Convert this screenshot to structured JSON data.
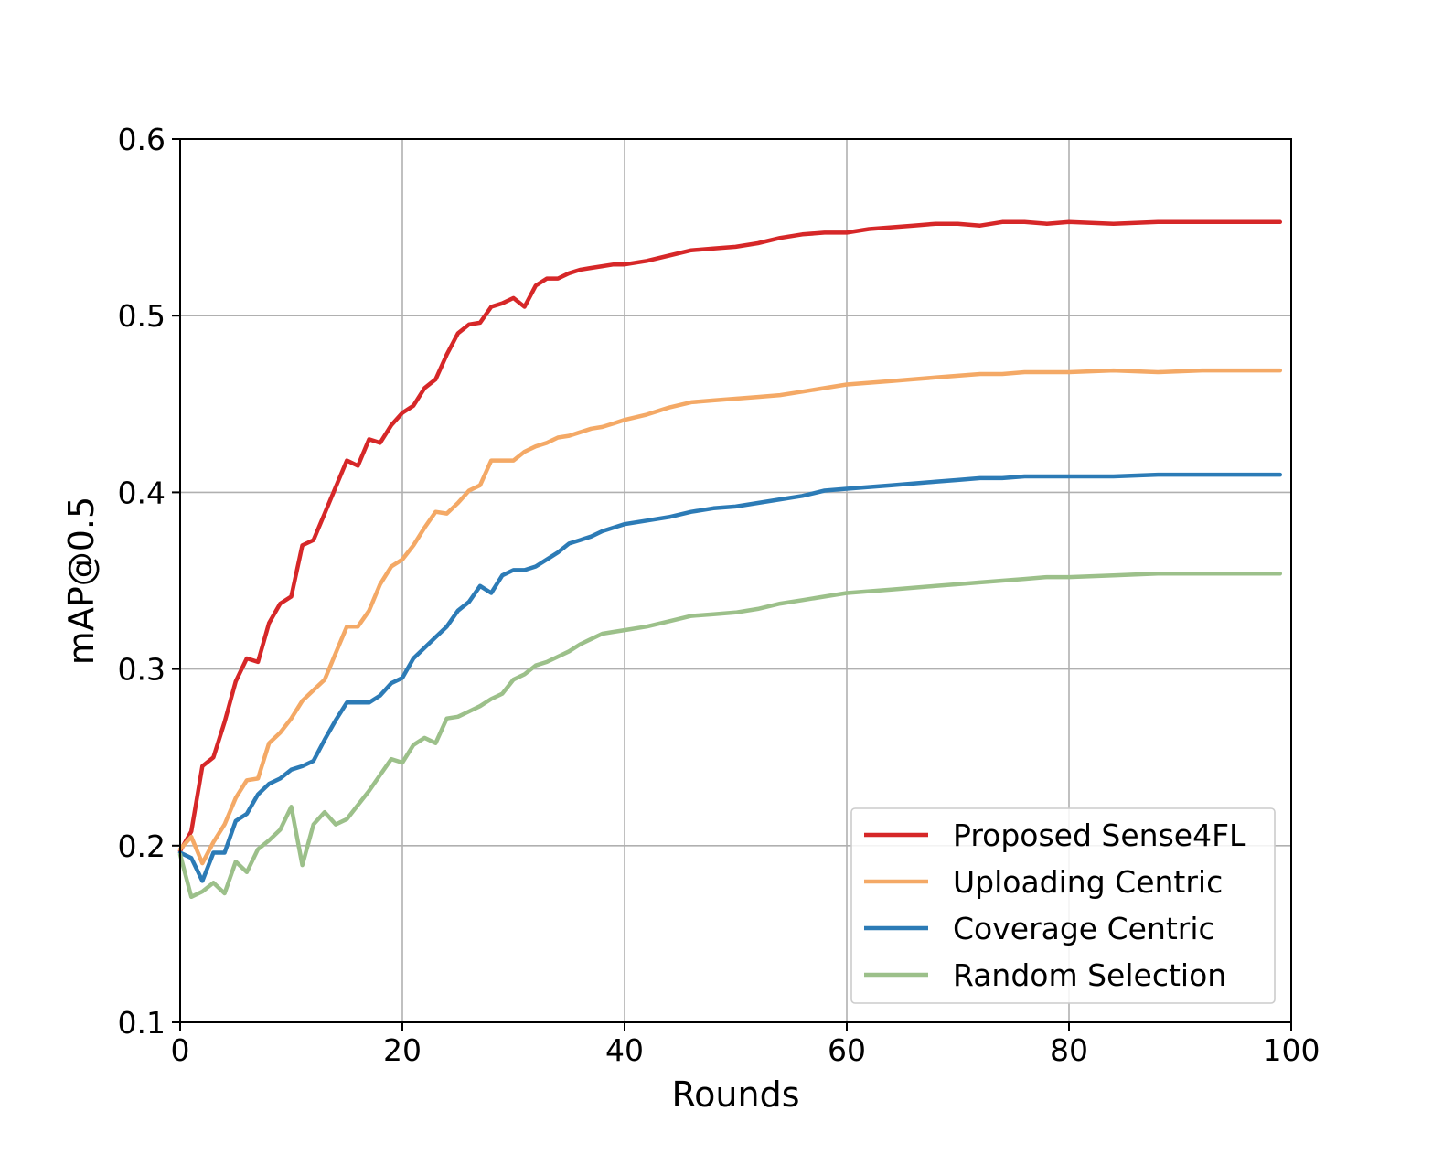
{
  "chart_data": {
    "type": "line",
    "xlabel": "Rounds",
    "ylabel": "mAP@0.5",
    "xlim": [
      0,
      100
    ],
    "ylim": [
      0.1,
      0.6
    ],
    "xticks": [
      0,
      20,
      40,
      60,
      80,
      100
    ],
    "yticks": [
      0.1,
      0.2,
      0.3,
      0.4,
      0.5,
      0.6
    ],
    "xtick_labels": [
      "0",
      "20",
      "40",
      "60",
      "80",
      "100"
    ],
    "ytick_labels": [
      "0.1",
      "0.2",
      "0.3",
      "0.4",
      "0.5",
      "0.6"
    ],
    "grid": true,
    "legend_position": "lower-right",
    "series": [
      {
        "name": "Proposed Sense4FL",
        "color": "#d62728",
        "x": [
          0,
          1,
          2,
          3,
          4,
          5,
          6,
          7,
          8,
          9,
          10,
          11,
          12,
          13,
          14,
          15,
          16,
          17,
          18,
          19,
          20,
          21,
          22,
          23,
          24,
          25,
          26,
          27,
          28,
          29,
          30,
          31,
          32,
          33,
          34,
          35,
          36,
          37,
          38,
          39,
          40,
          42,
          44,
          46,
          48,
          50,
          52,
          54,
          56,
          58,
          60,
          62,
          64,
          66,
          68,
          70,
          72,
          74,
          76,
          78,
          80,
          84,
          88,
          92,
          96,
          99
        ],
        "values": [
          0.197,
          0.208,
          0.245,
          0.25,
          0.27,
          0.293,
          0.306,
          0.304,
          0.326,
          0.337,
          0.341,
          0.37,
          0.373,
          0.388,
          0.403,
          0.418,
          0.415,
          0.43,
          0.428,
          0.438,
          0.445,
          0.449,
          0.459,
          0.464,
          0.478,
          0.49,
          0.495,
          0.496,
          0.505,
          0.507,
          0.51,
          0.505,
          0.517,
          0.521,
          0.521,
          0.524,
          0.526,
          0.527,
          0.528,
          0.529,
          0.529,
          0.531,
          0.534,
          0.537,
          0.538,
          0.539,
          0.541,
          0.544,
          0.546,
          0.547,
          0.547,
          0.549,
          0.55,
          0.551,
          0.552,
          0.552,
          0.551,
          0.553,
          0.553,
          0.552,
          0.553,
          0.552,
          0.553,
          0.553,
          0.553,
          0.553
        ]
      },
      {
        "name": "Uploading Centric",
        "color": "#f4a966",
        "x": [
          0,
          1,
          2,
          3,
          4,
          5,
          6,
          7,
          8,
          9,
          10,
          11,
          12,
          13,
          14,
          15,
          16,
          17,
          18,
          19,
          20,
          21,
          22,
          23,
          24,
          25,
          26,
          27,
          28,
          29,
          30,
          31,
          32,
          33,
          34,
          35,
          36,
          37,
          38,
          39,
          40,
          42,
          44,
          46,
          48,
          50,
          52,
          54,
          56,
          58,
          60,
          62,
          64,
          66,
          68,
          70,
          72,
          74,
          76,
          78,
          80,
          84,
          88,
          92,
          96,
          99
        ],
        "values": [
          0.198,
          0.205,
          0.19,
          0.202,
          0.212,
          0.227,
          0.237,
          0.238,
          0.258,
          0.264,
          0.272,
          0.282,
          0.288,
          0.294,
          0.309,
          0.324,
          0.324,
          0.333,
          0.348,
          0.358,
          0.362,
          0.37,
          0.38,
          0.389,
          0.388,
          0.394,
          0.401,
          0.404,
          0.418,
          0.418,
          0.418,
          0.423,
          0.426,
          0.428,
          0.431,
          0.432,
          0.434,
          0.436,
          0.437,
          0.439,
          0.441,
          0.444,
          0.448,
          0.451,
          0.452,
          0.453,
          0.454,
          0.455,
          0.457,
          0.459,
          0.461,
          0.462,
          0.463,
          0.464,
          0.465,
          0.466,
          0.467,
          0.467,
          0.468,
          0.468,
          0.468,
          0.469,
          0.468,
          0.469,
          0.469,
          0.469
        ]
      },
      {
        "name": "Coverage Centric",
        "color": "#2c7bb6",
        "x": [
          0,
          1,
          2,
          3,
          4,
          5,
          6,
          7,
          8,
          9,
          10,
          11,
          12,
          13,
          14,
          15,
          16,
          17,
          18,
          19,
          20,
          21,
          22,
          23,
          24,
          25,
          26,
          27,
          28,
          29,
          30,
          31,
          32,
          33,
          34,
          35,
          36,
          37,
          38,
          39,
          40,
          42,
          44,
          46,
          48,
          50,
          52,
          54,
          56,
          58,
          60,
          62,
          64,
          66,
          68,
          70,
          72,
          74,
          76,
          78,
          80,
          84,
          88,
          92,
          96,
          99
        ],
        "values": [
          0.196,
          0.193,
          0.18,
          0.196,
          0.196,
          0.214,
          0.218,
          0.229,
          0.235,
          0.238,
          0.243,
          0.245,
          0.248,
          0.26,
          0.271,
          0.281,
          0.281,
          0.281,
          0.285,
          0.292,
          0.295,
          0.306,
          0.312,
          0.318,
          0.324,
          0.333,
          0.338,
          0.347,
          0.343,
          0.353,
          0.356,
          0.356,
          0.358,
          0.362,
          0.366,
          0.371,
          0.373,
          0.375,
          0.378,
          0.38,
          0.382,
          0.384,
          0.386,
          0.389,
          0.391,
          0.392,
          0.394,
          0.396,
          0.398,
          0.401,
          0.402,
          0.403,
          0.404,
          0.405,
          0.406,
          0.407,
          0.408,
          0.408,
          0.409,
          0.409,
          0.409,
          0.409,
          0.41,
          0.41,
          0.41,
          0.41
        ]
      },
      {
        "name": "Random Selection",
        "color": "#9cc08a",
        "x": [
          0,
          1,
          2,
          3,
          4,
          5,
          6,
          7,
          8,
          9,
          10,
          11,
          12,
          13,
          14,
          15,
          16,
          17,
          18,
          19,
          20,
          21,
          22,
          23,
          24,
          25,
          26,
          27,
          28,
          29,
          30,
          31,
          32,
          33,
          34,
          35,
          36,
          37,
          38,
          39,
          40,
          42,
          44,
          46,
          48,
          50,
          52,
          54,
          56,
          58,
          60,
          62,
          64,
          66,
          68,
          70,
          72,
          74,
          76,
          78,
          80,
          84,
          88,
          92,
          96,
          99
        ],
        "values": [
          0.195,
          0.171,
          0.174,
          0.179,
          0.173,
          0.191,
          0.185,
          0.198,
          0.203,
          0.209,
          0.222,
          0.189,
          0.212,
          0.219,
          0.212,
          0.215,
          0.223,
          0.231,
          0.24,
          0.249,
          0.247,
          0.257,
          0.261,
          0.258,
          0.272,
          0.273,
          0.276,
          0.279,
          0.283,
          0.286,
          0.294,
          0.297,
          0.302,
          0.304,
          0.307,
          0.31,
          0.314,
          0.317,
          0.32,
          0.321,
          0.322,
          0.324,
          0.327,
          0.33,
          0.331,
          0.332,
          0.334,
          0.337,
          0.339,
          0.341,
          0.343,
          0.344,
          0.345,
          0.346,
          0.347,
          0.348,
          0.349,
          0.35,
          0.351,
          0.352,
          0.352,
          0.353,
          0.354,
          0.354,
          0.354,
          0.354
        ]
      }
    ]
  }
}
